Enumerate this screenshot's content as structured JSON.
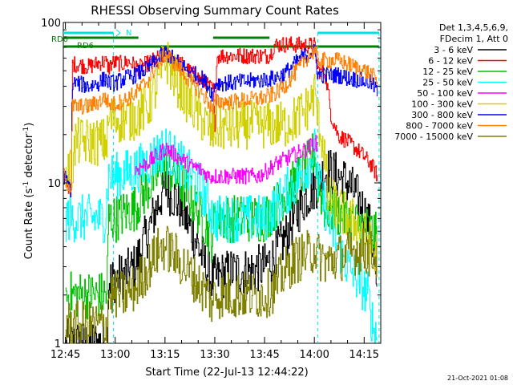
{
  "chart_data": {
    "type": "line",
    "title": "RHESSI Observing Summary Count Rates",
    "xlabel": "Start Time (22-Jul-13 12:44:22)",
    "ylabel_main": "Count Rate (s",
    "ylabel_sup": "-1",
    "ylabel_tail": " detector",
    "ylabel_close": ")",
    "yscale": "log",
    "xlim": [
      44.37,
      140.0
    ],
    "ylim": [
      1,
      100
    ],
    "x_units": "minutes after 12:00",
    "x_ticks": [
      {
        "value": 45,
        "label": "12:45"
      },
      {
        "value": 60,
        "label": "13:00"
      },
      {
        "value": 75,
        "label": "13:15"
      },
      {
        "value": 90,
        "label": "13:30"
      },
      {
        "value": 105,
        "label": "13:45"
      },
      {
        "value": 120,
        "label": "14:00"
      },
      {
        "value": 135,
        "label": "14:15"
      }
    ],
    "y_ticks": [
      {
        "value": 1,
        "label": "1"
      },
      {
        "value": 10,
        "label": "10"
      },
      {
        "value": 100,
        "label": "100"
      }
    ],
    "legend_header": [
      "Det 1,3,4,5,6,9,",
      "FDecim 1, Att 0"
    ],
    "legend_position": "right",
    "status_labels": [
      {
        "label": "RD0",
        "color": "#008000"
      },
      {
        "label": "RD6",
        "color": "#008000"
      },
      {
        "label": "N",
        "color": "#00e0e0"
      }
    ],
    "footer_date": "21-Oct-2021 01:08",
    "series": [
      {
        "name": "3 - 6 keV",
        "color": "#000000",
        "x": [
          45,
          48,
          52,
          55,
          57.5,
          58,
          60,
          63,
          66,
          70,
          73,
          75,
          78,
          82,
          86,
          88,
          89,
          91,
          95,
          100,
          105,
          108,
          111,
          114,
          117,
          119,
          121,
          122,
          124,
          127,
          130,
          133,
          137,
          139
        ],
        "y": [
          1,
          1,
          1,
          1,
          1,
          2.5,
          2.5,
          2.7,
          3,
          5,
          7.5,
          9.5,
          8,
          5.5,
          3.5,
          2.7,
          2.5,
          2.6,
          2.8,
          2.8,
          3,
          3.5,
          4.5,
          6,
          8,
          9,
          10,
          11,
          12,
          11,
          10,
          8,
          5,
          1.3
        ]
      },
      {
        "name": "6 - 12 keV",
        "color": "#ff0000",
        "x": [
          44.5,
          46,
          46.8,
          47,
          48,
          50,
          52,
          55,
          57,
          58,
          59,
          60.5,
          62,
          64,
          67,
          70,
          73,
          75,
          76,
          78,
          80,
          82,
          85,
          88,
          89.5,
          90,
          90.5,
          91,
          94,
          98,
          103,
          106,
          107,
          107.5,
          108,
          110,
          113,
          117,
          119,
          120,
          121,
          123,
          125,
          127,
          130,
          133,
          137,
          139
        ],
        "y": [
          11,
          9.5,
          9,
          55,
          55,
          54,
          53,
          56,
          57,
          52,
          56,
          56,
          55,
          57,
          52,
          56,
          60,
          62,
          63,
          58,
          55,
          50,
          45,
          40,
          38,
          15,
          60,
          62,
          62,
          62,
          62,
          62,
          65,
          70,
          72,
          73,
          73,
          72,
          72,
          72,
          50,
          50,
          26,
          20,
          18,
          16,
          13,
          11
        ]
      },
      {
        "name": "12 - 25 keV",
        "color": "#00c000",
        "x": [
          45,
          48,
          52,
          55,
          57.5,
          58,
          60,
          63,
          66,
          70,
          73,
          75,
          78,
          82,
          86,
          88,
          89,
          90,
          95,
          100,
          105,
          108,
          111,
          114,
          117,
          119,
          120,
          121,
          123,
          127,
          130,
          133,
          137,
          139
        ],
        "y": [
          2,
          2,
          2,
          2,
          2,
          6,
          6,
          6.5,
          7,
          9.5,
          11.5,
          13,
          11,
          8.5,
          6,
          5,
          4.5,
          6,
          6,
          6,
          6,
          7,
          8.5,
          10,
          12,
          14,
          16,
          10,
          7,
          6.5,
          6,
          5.5,
          5,
          4.5
        ]
      },
      {
        "name": "25 - 50 keV",
        "color": "#00ffff",
        "x": [
          45,
          48,
          52,
          55,
          57,
          58,
          60,
          63,
          66,
          70,
          73,
          75,
          78,
          82,
          86,
          88,
          89,
          90,
          95,
          100,
          105,
          108,
          111,
          114,
          117,
          119,
          120,
          121,
          124,
          127,
          130,
          133,
          136,
          137,
          138,
          139
        ],
        "y": [
          6,
          6,
          6,
          6,
          6,
          11,
          11,
          11.5,
          12,
          13.5,
          15.5,
          16.5,
          14,
          11.5,
          9,
          7.5,
          6.5,
          6,
          6,
          6,
          6,
          7,
          8.5,
          10,
          12,
          14,
          16,
          10,
          6,
          4,
          3,
          2.5,
          2,
          1.5,
          1.2,
          1.1
        ]
      },
      {
        "name": "50 - 100 keV",
        "color": "#ff00ff",
        "x": [
          66,
          70,
          73,
          75,
          78,
          82,
          86,
          88,
          89,
          103,
          106,
          108,
          111,
          114,
          117,
          119,
          120,
          121
        ],
        "y": [
          12,
          13.5,
          15,
          16.5,
          15,
          13,
          12,
          11,
          11,
          11,
          12,
          13,
          14,
          15,
          16,
          17,
          18,
          17
        ]
      },
      {
        "name": "100 - 300 keV",
        "color": "#d0d000",
        "x": [
          45,
          46,
          47,
          48,
          52,
          55,
          57.5,
          58,
          60,
          63,
          66,
          70,
          73,
          75,
          78,
          82,
          86,
          88,
          89,
          90,
          95,
          100,
          105,
          108,
          111,
          114,
          117,
          119,
          120,
          121,
          123,
          124,
          127,
          130,
          133,
          137,
          139
        ],
        "y": [
          12,
          12,
          12,
          18,
          18,
          18,
          18,
          25,
          25,
          25,
          26,
          30,
          42,
          60,
          44,
          32,
          25,
          22,
          20,
          22,
          22,
          23,
          23,
          23,
          23,
          25,
          28,
          32,
          37,
          25,
          15,
          8,
          7,
          6,
          5.5,
          4,
          3
        ]
      },
      {
        "name": "300 - 800 keV",
        "color": "#0000ff",
        "x": [
          44.5,
          46,
          46.8,
          47,
          48,
          50,
          52,
          55,
          57,
          58,
          60,
          63,
          66,
          70,
          73,
          75,
          78,
          82,
          86,
          88,
          89.5,
          90,
          91,
          95,
          100,
          105,
          108,
          111,
          114,
          117,
          119,
          120,
          121,
          124,
          127,
          130,
          133,
          137,
          139
        ],
        "y": [
          11,
          9.5,
          9,
          42,
          42,
          41,
          40,
          42,
          45,
          42,
          42,
          45,
          47,
          52,
          60,
          65,
          58,
          50,
          45,
          40,
          35,
          42,
          42,
          42,
          43,
          44,
          45,
          48,
          55,
          62,
          65,
          66,
          47,
          47,
          47,
          45,
          44,
          42,
          37
        ]
      },
      {
        "name": "800 - 7000 keV",
        "color": "#ff8000",
        "x": [
          44.5,
          46,
          46.8,
          47,
          48,
          50,
          52,
          55,
          57,
          58,
          60,
          63,
          66,
          70,
          73,
          75,
          78,
          82,
          86,
          88,
          89.5,
          90,
          91,
          95,
          100,
          105,
          108,
          111,
          114,
          117,
          119,
          120,
          121,
          124,
          127,
          130,
          133,
          137,
          139
        ],
        "y": [
          11,
          9.5,
          9,
          30,
          30,
          30,
          30,
          32,
          34,
          31,
          31,
          33,
          36,
          44,
          56,
          64,
          55,
          44,
          36,
          32,
          28,
          32,
          32,
          32,
          33,
          34,
          36,
          40,
          48,
          58,
          64,
          67,
          58,
          58,
          58,
          55,
          52,
          48,
          42
        ]
      },
      {
        "name": "7000 - 15000 keV",
        "color": "#808000",
        "x": [
          45,
          48,
          52,
          55,
          57.5,
          58,
          60,
          63,
          66,
          70,
          73,
          75,
          78,
          82,
          86,
          88,
          89,
          90,
          95,
          100,
          105,
          108,
          111,
          114,
          117,
          119,
          120,
          121,
          124,
          127,
          130,
          133,
          137,
          139
        ],
        "y": [
          1.3,
          1.3,
          1.3,
          1.3,
          1.3,
          2,
          2,
          2,
          2.2,
          3,
          3.8,
          4,
          3.5,
          2.8,
          2.2,
          2,
          1.8,
          2,
          2,
          2,
          2,
          2.2,
          2.8,
          3.3,
          3.5,
          3.7,
          4,
          3.5,
          3.2,
          3.4,
          3.6,
          3.8,
          3.6,
          3.5
        ]
      }
    ]
  }
}
